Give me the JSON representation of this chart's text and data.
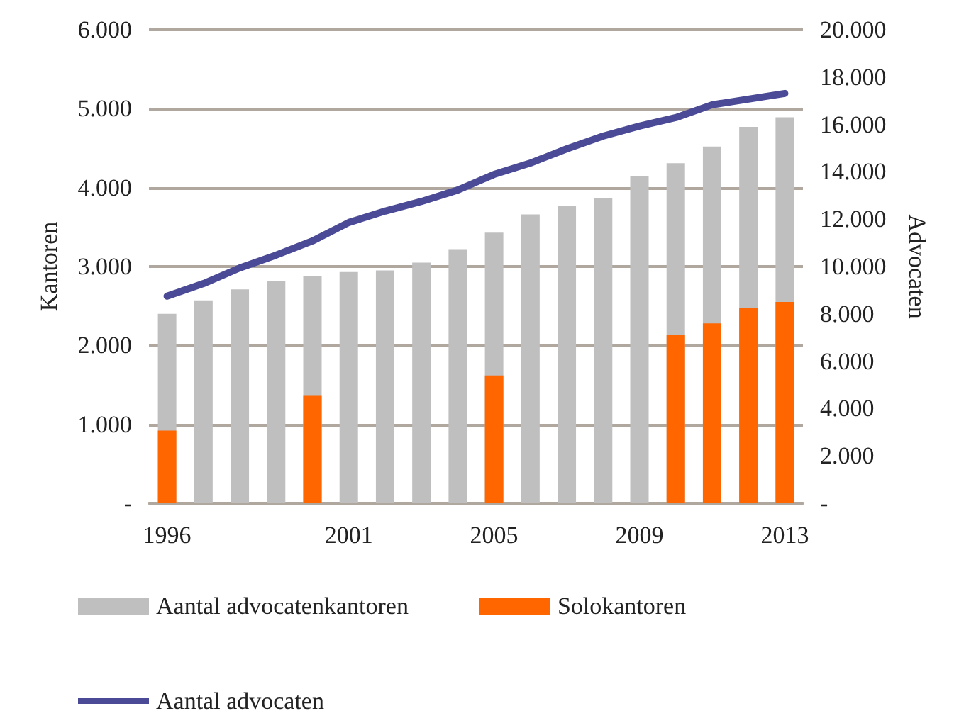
{
  "chart_data": {
    "type": "bar",
    "ylabel": "Kantoren",
    "y2label": "Advocaten",
    "categories": [
      "1996",
      null,
      null,
      null,
      null,
      "2001",
      null,
      null,
      null,
      "2005",
      null,
      null,
      null,
      "2009",
      null,
      null,
      null,
      "2013"
    ],
    "series": [
      {
        "name": "Aantal advocatenkantoren",
        "color": "#bfbfbf",
        "values": [
          2400,
          2570,
          2710,
          2820,
          2880,
          2930,
          2950,
          3050,
          3220,
          3430,
          3660,
          3770,
          3870,
          4140,
          4310,
          4520,
          4770,
          4890
        ]
      },
      {
        "name": "Solokantoren",
        "color": "#ff6600",
        "values": [
          920,
          null,
          null,
          null,
          1370,
          null,
          null,
          null,
          null,
          1620,
          null,
          null,
          null,
          null,
          2130,
          2280,
          2470,
          2550
        ]
      },
      {
        "name": "Aantal advocaten",
        "type": "line",
        "axis": "y2",
        "color": "#4b4a96",
        "values": [
          8750,
          9280,
          9940,
          10480,
          11080,
          11860,
          12340,
          12750,
          13230,
          13890,
          14370,
          14970,
          15510,
          15930,
          16290,
          16830,
          17070,
          17310
        ]
      }
    ],
    "ylim": [
      0,
      6000
    ],
    "yticks": [
      {
        "value": 0,
        "label": "-"
      },
      {
        "value": 1000,
        "label": "1.000"
      },
      {
        "value": 2000,
        "label": "2.000"
      },
      {
        "value": 3000,
        "label": "3.000"
      },
      {
        "value": 4000,
        "label": "4.000"
      },
      {
        "value": 5000,
        "label": "5.000"
      },
      {
        "value": 6000,
        "label": "6.000"
      }
    ],
    "y2lim": [
      0,
      20000
    ],
    "y2ticks": [
      {
        "value": 0,
        "label": "-"
      },
      {
        "value": 2000,
        "label": "2.000"
      },
      {
        "value": 4000,
        "label": "4.000"
      },
      {
        "value": 6000,
        "label": "6.000"
      },
      {
        "value": 8000,
        "label": "8.000"
      },
      {
        "value": 10000,
        "label": "10.000"
      },
      {
        "value": 12000,
        "label": "12.000"
      },
      {
        "value": 14000,
        "label": "14.000"
      },
      {
        "value": 16000,
        "label": "16.000"
      },
      {
        "value": 18000,
        "label": "18.000"
      },
      {
        "value": 20000,
        "label": "20.000"
      }
    ],
    "grid": "y",
    "legend": "bottom",
    "marker": "none"
  }
}
